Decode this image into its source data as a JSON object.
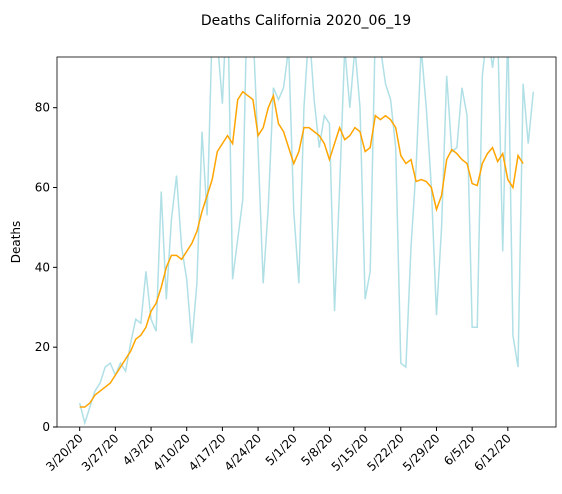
{
  "chart_data": {
    "type": "line",
    "title": "Deaths California 2020_06_19",
    "ylabel": "Deaths",
    "x": [
      "3/20/20",
      "3/21/20",
      "3/22/20",
      "3/23/20",
      "3/24/20",
      "3/25/20",
      "3/26/20",
      "3/27/20",
      "3/28/20",
      "3/29/20",
      "3/30/20",
      "3/31/20",
      "4/1/20",
      "4/2/20",
      "4/3/20",
      "4/4/20",
      "4/5/20",
      "4/6/20",
      "4/7/20",
      "4/8/20",
      "4/9/20",
      "4/10/20",
      "4/11/20",
      "4/12/20",
      "4/13/20",
      "4/14/20",
      "4/15/20",
      "4/16/20",
      "4/17/20",
      "4/18/20",
      "4/19/20",
      "4/20/20",
      "4/21/20",
      "4/22/20",
      "4/23/20",
      "4/24/20",
      "4/25/20",
      "4/26/20",
      "4/27/20",
      "4/28/20",
      "4/29/20",
      "4/30/20",
      "5/1/20",
      "5/2/20",
      "5/3/20",
      "5/4/20",
      "5/5/20",
      "5/6/20",
      "5/7/20",
      "5/8/20",
      "5/9/20",
      "5/10/20",
      "5/11/20",
      "5/12/20",
      "5/13/20",
      "5/14/20",
      "5/15/20",
      "5/16/20",
      "5/17/20",
      "5/18/20",
      "5/19/20",
      "5/20/20",
      "5/21/20",
      "5/22/20",
      "5/23/20",
      "5/24/20",
      "5/25/20",
      "5/26/20",
      "5/27/20",
      "5/28/20",
      "5/29/20",
      "5/30/20",
      "5/31/20",
      "6/1/20",
      "6/2/20",
      "6/3/20",
      "6/4/20",
      "6/5/20",
      "6/6/20",
      "6/7/20",
      "6/8/20",
      "6/9/20",
      "6/10/20",
      "6/11/20",
      "6/12/20",
      "6/13/20",
      "6/14/20",
      "6/15/20",
      "6/16/20",
      "6/17/20"
    ],
    "series": [
      {
        "color": "#b0e0e6",
        "values": [
          6,
          1,
          5,
          9,
          11,
          15,
          16,
          13,
          16,
          14,
          21,
          27,
          26,
          39,
          27,
          24,
          59,
          32,
          52,
          63,
          45,
          37,
          21,
          36,
          74,
          53,
          100,
          97,
          81,
          110,
          37,
          47,
          57,
          115,
          100,
          70,
          36,
          55,
          85,
          82,
          85,
          95,
          54,
          36,
          80,
          100,
          82,
          70,
          78,
          76,
          29,
          60,
          95,
          80,
          95,
          80,
          32,
          39,
          100,
          95,
          86,
          82,
          70,
          16,
          15,
          45,
          65,
          95,
          80,
          60,
          28,
          50,
          88,
          69,
          70,
          85,
          78,
          25,
          25,
          88,
          100,
          90,
          100,
          44,
          100,
          23,
          15,
          86,
          71,
          84
        ]
      },
      {
        "color": "#ffa500",
        "values": [
          5,
          5,
          6,
          8,
          9,
          10,
          11,
          13,
          15,
          17,
          19,
          22,
          23,
          25,
          29,
          31,
          35,
          40,
          43,
          43,
          42,
          44,
          46,
          49,
          54,
          58,
          62,
          69,
          71,
          73,
          71,
          82,
          84,
          83,
          82,
          73,
          75,
          80,
          83,
          76,
          74,
          70,
          66,
          69,
          75,
          75,
          74,
          73,
          71,
          67,
          71,
          75,
          72,
          73,
          75,
          74,
          69,
          70,
          78,
          77,
          78,
          77,
          75,
          68,
          66,
          67,
          61.5,
          62,
          61.5,
          60,
          54.5,
          58,
          67,
          69.5,
          68.5,
          67,
          66,
          61,
          60.5,
          66,
          68.5,
          70,
          66.5,
          68.5,
          62,
          60,
          68,
          66,
          null,
          null
        ]
      }
    ],
    "xticks": [
      "3/20/20",
      "3/27/20",
      "4/3/20",
      "4/10/20",
      "4/17/20",
      "4/24/20",
      "5/1/20",
      "5/8/20",
      "5/15/20",
      "5/22/20",
      "5/29/20",
      "6/5/20",
      "6/12/20"
    ],
    "ylim": [
      0,
      92.7
    ],
    "yticks": [
      0,
      20,
      40,
      60,
      80
    ]
  }
}
